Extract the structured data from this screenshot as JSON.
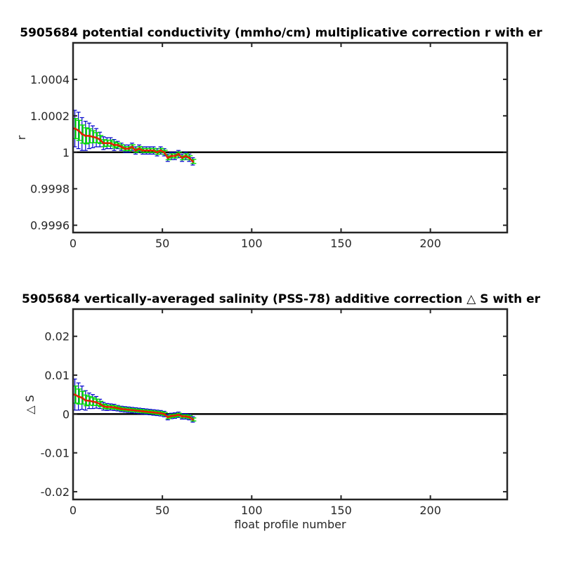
{
  "chart_data": [
    {
      "type": "line",
      "title": "5905684 potential conductivity (mmho/cm) multiplicative correction r with er",
      "xlabel": "",
      "ylabel": "r",
      "xlim": [
        0,
        243
      ],
      "ylim": [
        0.99956,
        1.0006
      ],
      "xticks": [
        0,
        50,
        100,
        150,
        200
      ],
      "xtick_labels": [
        "0",
        "50",
        "100",
        "150",
        "200"
      ],
      "yticks": [
        0.9996,
        0.9998,
        1.0,
        1.0002,
        1.0004
      ],
      "ytick_labels": [
        "0.9996",
        "0.9998",
        "1",
        "1.0002",
        "1.0004"
      ],
      "grid": false,
      "reference_line": 1.0,
      "colors": {
        "reference": "#000000",
        "error_bar": "#0000cc",
        "band": "#00dd00",
        "series": "#dd2200"
      },
      "series": [
        {
          "x": [
            1,
            3,
            5,
            7,
            9,
            11,
            13,
            15,
            17,
            19,
            21,
            23,
            25,
            27,
            29,
            31,
            33,
            35,
            37,
            39,
            41,
            43,
            45,
            47,
            49,
            51,
            53,
            55,
            57,
            59,
            61,
            63,
            65,
            67
          ],
          "values": [
            1.00013,
            1.00012,
            1.0001,
            1.00009,
            1.00009,
            1.000085,
            1.00008,
            1.00007,
            1.00005,
            1.00005,
            1.00005,
            1.00004,
            1.00004,
            1.00003,
            1.00002,
            1.00002,
            1.00003,
            1.00001,
            1.00002,
            1.00001,
            1.00001,
            1.00001,
            1.00001,
            1.0,
            1.00001,
            1.0,
            0.99997,
            0.99998,
            0.99998,
            0.99999,
            0.99997,
            0.99998,
            0.99997,
            0.99995
          ],
          "error": [
            0.0001,
            0.0001,
            9e-05,
            8e-05,
            7e-05,
            6e-05,
            5e-05,
            4e-05,
            3.5e-05,
            3e-05,
            3e-05,
            3e-05,
            2e-05,
            2e-05,
            2e-05,
            2e-05,
            2e-05,
            2e-05,
            2e-05,
            2e-05,
            2e-05,
            2e-05,
            2e-05,
            2e-05,
            2e-05,
            2e-05,
            2e-05,
            2e-05,
            2e-05,
            2e-05,
            2e-05,
            2e-05,
            2e-05,
            2e-05
          ]
        }
      ]
    },
    {
      "type": "line",
      "title": "5905684 vertically-averaged salinity (PSS-78) additive correction △ S with er",
      "xlabel": "float profile number",
      "ylabel": "△ S",
      "xlim": [
        0,
        243
      ],
      "ylim": [
        -0.022,
        0.027
      ],
      "xticks": [
        0,
        50,
        100,
        150,
        200
      ],
      "xtick_labels": [
        "0",
        "50",
        "100",
        "150",
        "200"
      ],
      "yticks": [
        -0.02,
        -0.01,
        0,
        0.01,
        0.02
      ],
      "ytick_labels": [
        "-0.02",
        "-0.01",
        "0",
        "0.01",
        "0.02"
      ],
      "grid": false,
      "reference_line": 0,
      "colors": {
        "reference": "#000000",
        "error_bar": "#0000cc",
        "band": "#00dd00",
        "series": "#dd2200"
      },
      "series": [
        {
          "x": [
            1,
            3,
            5,
            7,
            9,
            11,
            13,
            15,
            17,
            19,
            21,
            23,
            25,
            27,
            29,
            31,
            33,
            35,
            37,
            39,
            41,
            43,
            45,
            47,
            49,
            51,
            53,
            55,
            57,
            59,
            61,
            63,
            65,
            67
          ],
          "values": [
            0.005,
            0.0045,
            0.0042,
            0.0035,
            0.0034,
            0.0032,
            0.003,
            0.0026,
            0.002,
            0.0018,
            0.0018,
            0.0017,
            0.0015,
            0.0013,
            0.0012,
            0.0011,
            0.001,
            0.0009,
            0.0008,
            0.0007,
            0.0006,
            0.0005,
            0.0004,
            0.0003,
            0.0002,
            0.0,
            -0.0008,
            -0.0005,
            -0.0004,
            -0.0002,
            -0.0006,
            -0.0006,
            -0.0008,
            -0.0014
          ],
          "error": [
            0.004,
            0.0035,
            0.003,
            0.0025,
            0.002,
            0.0018,
            0.0015,
            0.0012,
            0.001,
            0.0009,
            0.0008,
            0.0008,
            0.0007,
            0.0007,
            0.0007,
            0.0007,
            0.0007,
            0.0007,
            0.0007,
            0.0007,
            0.0007,
            0.0007,
            0.0007,
            0.0007,
            0.0007,
            0.0007,
            0.0007,
            0.0007,
            0.0007,
            0.0007,
            0.0007,
            0.0007,
            0.0007,
            0.0007
          ]
        }
      ]
    }
  ]
}
